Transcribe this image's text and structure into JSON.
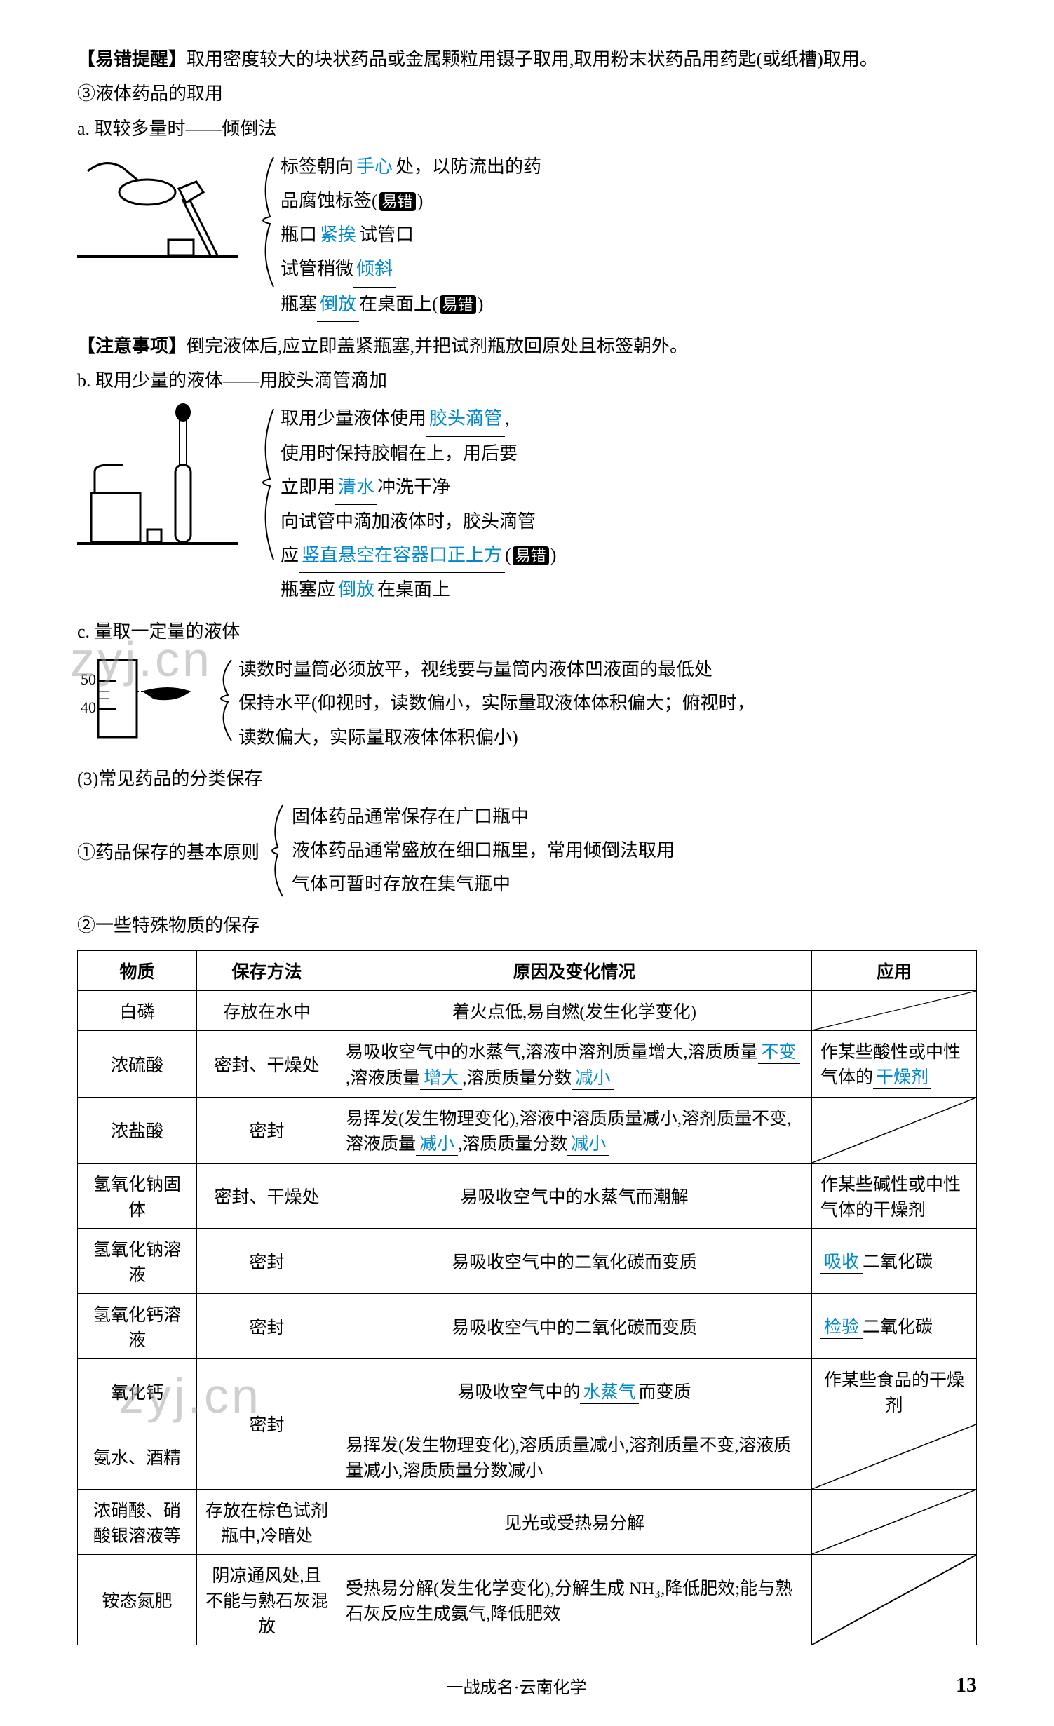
{
  "header": {
    "tip_label": "【易错提醒】",
    "tip_text": "取用密度较大的块状药品或金属颗粒用镊子取用,取用粉末状药品用药匙(或纸槽)取用。"
  },
  "sec3": {
    "title": "③液体药品的取用",
    "a": {
      "label": "a. 取较多量时——倾倒法",
      "lines": {
        "l1_pre": "标签朝向",
        "l1_blank": "手心",
        "l1_post": "处，以防流出的药",
        "l2_pre": "品腐蚀标签(",
        "l2_badge": "易错",
        "l2_post": ")",
        "l3_pre": "瓶口",
        "l3_blank": "紧挨",
        "l3_post": "试管口",
        "l4_pre": "试管稍微",
        "l4_blank": "倾斜",
        "l5_pre": "瓶塞",
        "l5_blank": "倒放",
        "l5_post": "在桌面上(",
        "l5_badge": "易错",
        "l5_post2": ")"
      }
    },
    "note": {
      "label": "【注意事项】",
      "text": "倒完液体后,应立即盖紧瓶塞,并把试剂瓶放回原处且标签朝外。"
    },
    "b": {
      "label": "b. 取用少量的液体——用胶头滴管滴加",
      "lines": {
        "l1_pre": "取用少量液体使用",
        "l1_blank": "胶头滴管",
        "l1_post": ",",
        "l2": "使用时保持胶帽在上，用后要",
        "l3_pre": "立即用",
        "l3_blank": "清水",
        "l3_post": "冲洗干净",
        "l4": "向试管中滴加液体时，胶头滴管",
        "l5_pre": "应",
        "l5_blank": "竖直悬空在容器口正上方",
        "l5_post": "(",
        "l5_badge": "易错",
        "l5_post2": ")",
        "l6_pre": "瓶塞应",
        "l6_blank": "倒放",
        "l6_post": "在桌面上"
      }
    },
    "c": {
      "label": "c. 量取一定量的液体",
      "cyl_labels": [
        "50",
        "40"
      ],
      "lines": {
        "l1": "读数时量筒必须放平，视线要与量筒内液体凹液面的最低处",
        "l2": "保持水平(仰视时，读数偏小，实际量取液体体积偏大；俯视时，",
        "l3": "读数偏大，实际量取液体体积偏小)"
      }
    }
  },
  "sec_storage": {
    "title": "(3)常见药品的分类保存",
    "rule_label": "①药品保存的基本原则",
    "rules": [
      "固体药品通常保存在广口瓶中",
      "液体药品通常盛放在细口瓶里，常用倾倒法取用",
      "气体可暂时存放在集气瓶中"
    ],
    "special_title": "②一些特殊物质的保存"
  },
  "table": {
    "headers": [
      "物质",
      "保存方法",
      "原因及变化情况",
      "应用"
    ],
    "rows": [
      {
        "substance": "白磷",
        "method": "存放在水中",
        "reason": {
          "text": "着火点低,易自燃(发生化学变化)"
        },
        "app_diag": true
      },
      {
        "substance": "浓硫酸",
        "method": "密封、干燥处",
        "reason": {
          "pre": "易吸收空气中的水蒸气,溶液中溶剂质量增大,溶质质量",
          "b1": "不变",
          "mid": ",溶液质量",
          "b2": "增大",
          "mid2": ",溶质质量分数",
          "b3": "减小"
        },
        "app": {
          "pre": "作某些酸性或中性气体的",
          "blank": "干燥剂"
        }
      },
      {
        "substance": "浓盐酸",
        "method": "密封",
        "reason": {
          "pre": "易挥发(发生物理变化),溶液中溶质质量减小,溶剂质量不变,溶液质量",
          "b1": "减小",
          "mid": ",溶质质量分数",
          "b2": "减小"
        },
        "app_diag": true
      },
      {
        "substance": "氢氧化钠固体",
        "method": "密封、干燥处",
        "reason": {
          "text": "易吸收空气中的水蒸气而潮解"
        },
        "app": {
          "text": "作某些碱性或中性气体的干燥剂"
        }
      },
      {
        "substance": "氢氧化钠溶液",
        "method": "密封",
        "reason": {
          "text": "易吸收空气中的二氧化碳而变质"
        },
        "app": {
          "blank": "吸收",
          "post": "二氧化碳"
        }
      },
      {
        "substance": "氢氧化钙溶液",
        "method": "密封",
        "reason": {
          "text": "易吸收空气中的二氧化碳而变质"
        },
        "app": {
          "blank": "检验",
          "post": "二氧化碳"
        }
      },
      {
        "substance": "氧化钙",
        "method": "密封",
        "reason": {
          "pre": "易吸收空气中的",
          "b1": "水蒸气",
          "post": "而变质"
        },
        "app": {
          "text": "作某些食品的干燥剂"
        }
      },
      {
        "substance": "氨水、酒精",
        "method": "密封",
        "reason": {
          "text": "易挥发(发生物理变化),溶质质量减小,溶剂质量不变,溶液质量减小,溶质质量分数减小"
        },
        "app_diag": true
      },
      {
        "substance": "浓硝酸、硝酸银溶液等",
        "method": "存放在棕色试剂瓶中,冷暗处",
        "reason": {
          "text": "见光或受热易分解"
        },
        "app_diag": true
      },
      {
        "substance": "铵态氮肥",
        "method": "阴凉通风处,且不能与熟石灰混放",
        "reason": {
          "text": "受热易分解(发生化学变化),分解生成 NH₃,降低肥效;能与熟石灰反应生成氨气,降低肥效"
        },
        "app_diag": true
      }
    ]
  },
  "footer": {
    "center": "一战成名·云南化学",
    "page": "13"
  },
  "watermarks": [
    "zyj.cn",
    "zyj.cn"
  ]
}
